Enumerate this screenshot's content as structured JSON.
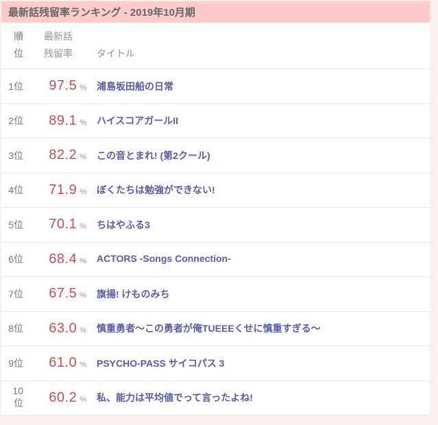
{
  "card": {
    "header": {
      "title": "最新話残留率ランキング - 2019年10月期"
    },
    "columns": {
      "rank": "順位",
      "retention_line1": "最新話",
      "retention_line2": "残留率",
      "title": "タイトル"
    },
    "rows": [
      {
        "rank": "1位",
        "retention": "97.5",
        "unit": "%",
        "title": "浦島坂田船の日常"
      },
      {
        "rank": "2位",
        "retention": "89.1",
        "unit": "%",
        "title": "ハイスコアガールII"
      },
      {
        "rank": "3位",
        "retention": "82.2",
        "unit": "%",
        "title": "この音とまれ! (第2クール)"
      },
      {
        "rank": "4位",
        "retention": "71.9",
        "unit": "%",
        "title": "ぼくたちは勉強ができない!"
      },
      {
        "rank": "5位",
        "retention": "70.1",
        "unit": "%",
        "title": "ちはやふる3"
      },
      {
        "rank": "6位",
        "retention": "68.4",
        "unit": "%",
        "title": "ACTORS -Songs Connection-"
      },
      {
        "rank": "7位",
        "retention": "67.5",
        "unit": "%",
        "title": "旗揚! けものみち"
      },
      {
        "rank": "8位",
        "retention": "63.0",
        "unit": "%",
        "title": "慎重勇者～この勇者が俺TUEEEくせに慎重すぎる～"
      },
      {
        "rank": "9位",
        "retention": "61.0",
        "unit": "%",
        "title": "PSYCHO-PASS サイコパス 3"
      },
      {
        "rank": "10位",
        "retention": "60.2",
        "unit": "%",
        "title": "私、能力は平均値でって言ったよね!"
      }
    ],
    "colors": {
      "header_bg": "#fdcbca",
      "page_bg": "#fbf0ee",
      "card_bg": "#ffffff",
      "percent": "#c04f57",
      "percent_sign": "#cf7d84",
      "title_link": "#5a5aa6",
      "rank_text": "#777777",
      "header_text": "#666666",
      "column_header_text": "#969696",
      "separator": "#ede9e9"
    }
  }
}
